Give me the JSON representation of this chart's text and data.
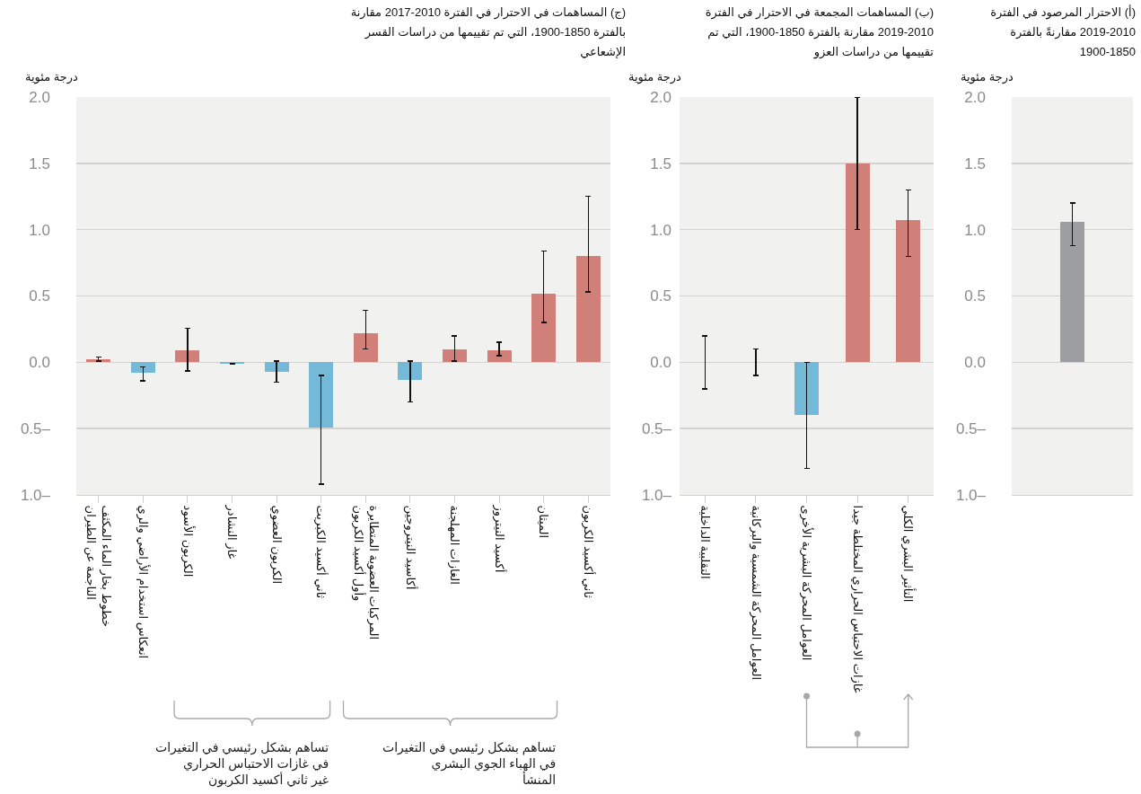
{
  "chart_data": [
    {
      "type": "bar",
      "title": "(أ) الاحترار المرصود في الفترة 2010-2019 مقارنةً بالفترة 1850-1900",
      "ylabel": "درجة مئوية",
      "categories": [
        null
      ],
      "values": [
        1.06
      ],
      "colors": [
        "#9d9ea2"
      ],
      "errors": [
        [
          0.88,
          1.2
        ]
      ],
      "ylim": [
        -1,
        2
      ],
      "yticks": [
        {
          "value": -1,
          "label": "1.0–"
        },
        {
          "value": -0.5,
          "label": "0.5–"
        },
        {
          "value": 0,
          "label": "0.0"
        },
        {
          "value": 0.5,
          "label": "0.5"
        },
        {
          "value": 1,
          "label": "1.0"
        },
        {
          "value": 1.5,
          "label": "1.5"
        },
        {
          "value": 2,
          "label": "2.0"
        }
      ],
      "grid": "y"
    },
    {
      "type": "bar",
      "title": "(ب) المساهمات المجمعة في الاحترار في الفترة 2010-2019 مقارنة بالفترة 1850-1900، التي تم تقييمها من دراسات العزو",
      "ylabel": "درجة مئوية",
      "categories": [
        "التقلبية الداخلية",
        "العوامل المحركة الشمسية والبركانية",
        "العوامل المحركة البشرية الأخرى",
        "غازات الاحتباس الحراري المختلطة جيدا",
        "التأثير البشري الكلي"
      ],
      "values": [
        0,
        0,
        -0.4,
        1.5,
        1.07
      ],
      "colors": [
        "#9d9ea2",
        "#9d9ea2",
        "#74b9d7",
        "#d17f79",
        "#d17f79"
      ],
      "errors": [
        [
          -0.2,
          0.2
        ],
        [
          -0.1,
          0.1
        ],
        [
          -0.8,
          0
        ],
        [
          1.0,
          2.0
        ],
        [
          0.8,
          1.3
        ]
      ],
      "ylim": [
        -1,
        2
      ],
      "yticks": [
        {
          "value": -1,
          "label": "1.0–"
        },
        {
          "value": -0.5,
          "label": "0.5–"
        },
        {
          "value": 0,
          "label": "0.0"
        },
        {
          "value": 0.5,
          "label": "0.5"
        },
        {
          "value": 1,
          "label": "1.0"
        },
        {
          "value": 1.5,
          "label": "1.5"
        },
        {
          "value": 2,
          "label": "2.0"
        }
      ],
      "grid": "y"
    },
    {
      "type": "bar",
      "title": "(ج) المساهمات في الاحترار في الفترة 2010-2017 مقارنة بالفترة 1850-1900، التي تم تقييمها من دراسات القسر الإشعاعي",
      "ylabel": "درجة مئوية",
      "categories": [
        "خطوط بخار الماء المكثف الناجمة عن الطيران",
        "انعكاس استخدام الأراضي والري",
        "الكربون الأسود",
        "غاز النشادر",
        "الكربون العضوي",
        "ثاني أكسيد الكبريت",
        "المركبات العضوية المتطايرة وأول أكسيد الكربون",
        "أكاسيد النيتروجين",
        "الغازات المهلجنة",
        "أكسيد النيتروز",
        "الميثان",
        "ثاني أكسيد الكربون"
      ],
      "values": [
        0.02,
        -0.08,
        0.09,
        -0.01,
        -0.07,
        -0.49,
        0.22,
        -0.13,
        0.1,
        0.09,
        0.52,
        0.8
      ],
      "colors": [
        "#d17f79",
        "#74b9d7",
        "#d17f79",
        "#74b9d7",
        "#74b9d7",
        "#74b9d7",
        "#d17f79",
        "#74b9d7",
        "#d17f79",
        "#d17f79",
        "#d17f79",
        "#d17f79"
      ],
      "errors": [
        [
          0.01,
          0.04
        ],
        [
          -0.14,
          -0.035
        ],
        [
          -0.065,
          0.255
        ],
        null,
        [
          -0.15,
          0.01
        ],
        [
          -0.92,
          -0.1
        ],
        [
          0.1,
          0.39
        ],
        [
          -0.3,
          0.01
        ],
        [
          0.01,
          0.2
        ],
        [
          0.05,
          0.15
        ],
        [
          0.3,
          0.84
        ],
        [
          0.53,
          1.25
        ]
      ],
      "ylim": [
        -1,
        2
      ],
      "yticks": [
        {
          "value": -1,
          "label": "1.0–"
        },
        {
          "value": -0.5,
          "label": "0.5–"
        },
        {
          "value": 0,
          "label": "0.0"
        },
        {
          "value": 0.5,
          "label": "0.5"
        },
        {
          "value": 1,
          "label": "1.0"
        },
        {
          "value": 1.5,
          "label": "1.5"
        },
        {
          "value": 2,
          "label": "2.0"
        }
      ],
      "grid": "y",
      "annotations": [
        "تساهم بشكل رئيسي في التغيرات في غازات الاحتباس الحراري غير ثاني أكسيد الكربون",
        "تساهم بشكل رئيسي في التغيرات في الهباء الجوي البشري المنشأ"
      ]
    }
  ]
}
